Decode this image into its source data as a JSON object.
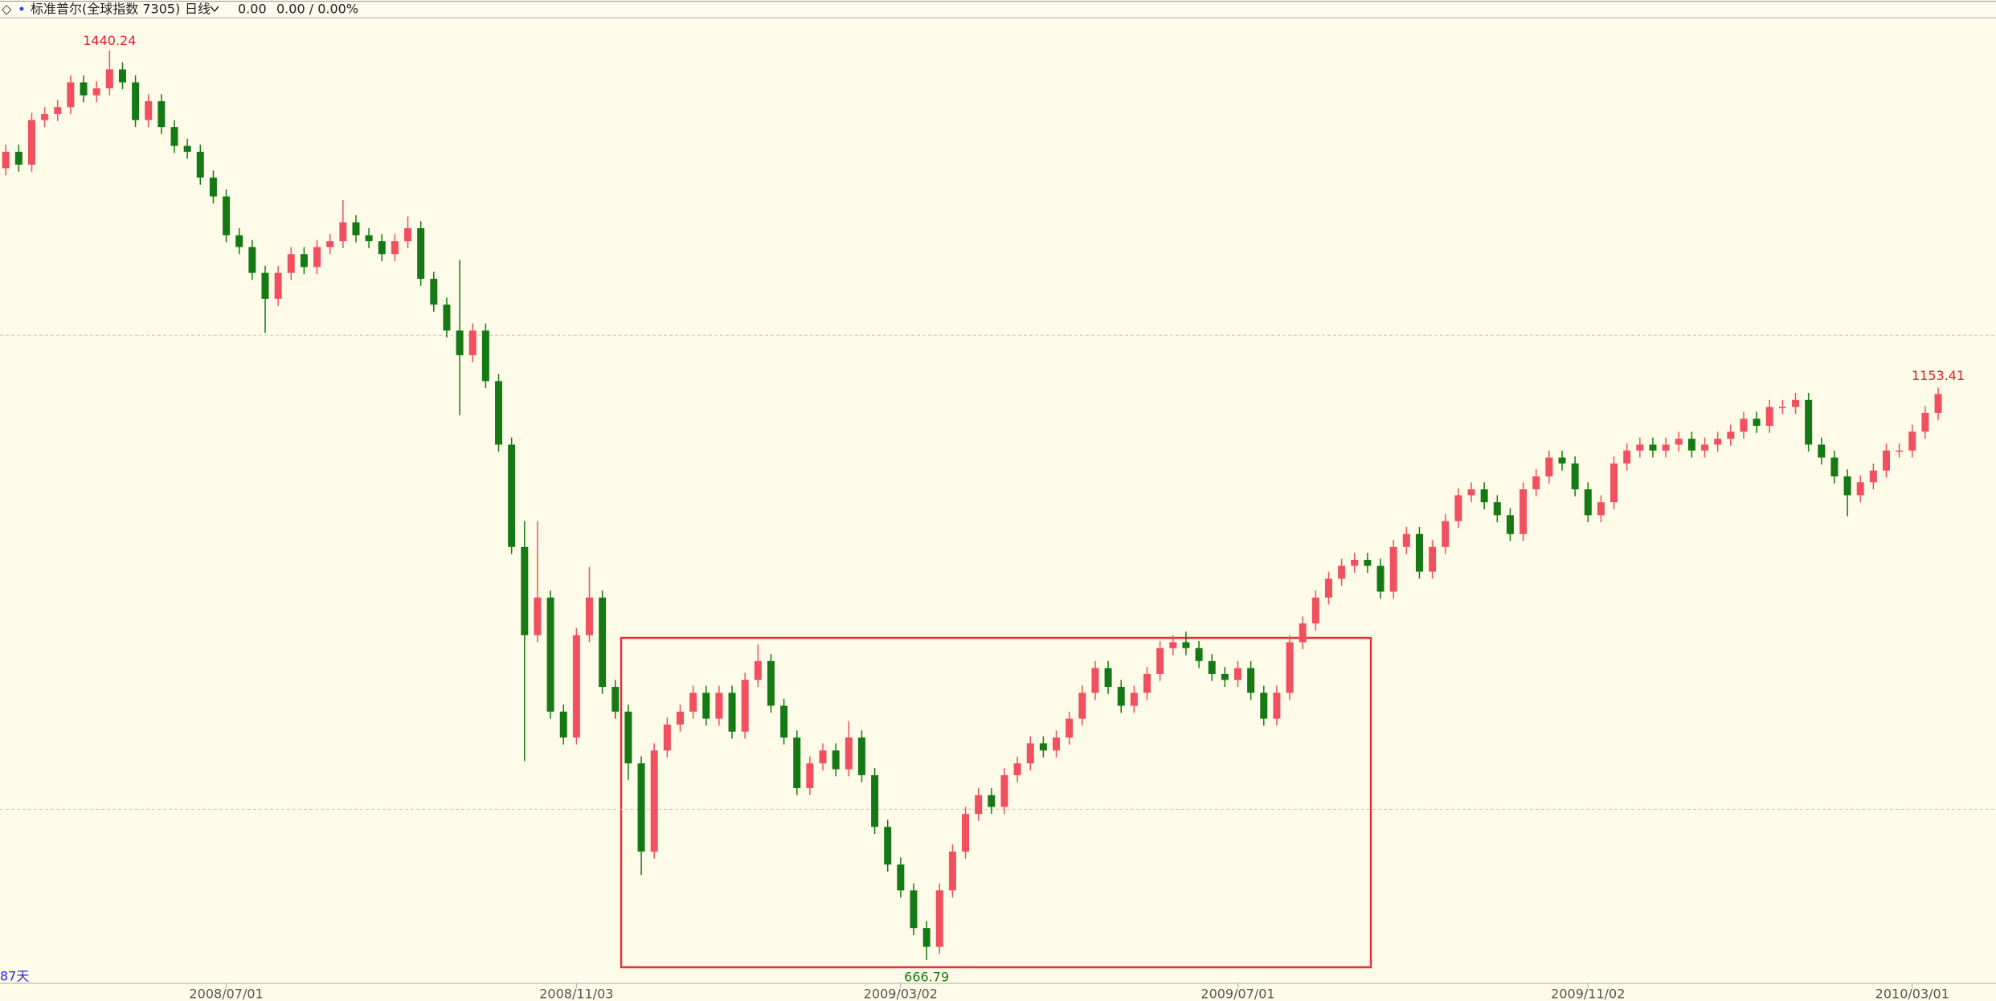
{
  "toolbar": {
    "name": "标准普尔(全球指数 7305)",
    "period": "日线",
    "price": "0.00",
    "change": "0.00 / 0.00%"
  },
  "chart_data": {
    "type": "candlestick",
    "categories": [
      null,
      null,
      null,
      null,
      null,
      null,
      null,
      null,
      null,
      null,
      null,
      null,
      null,
      null,
      null,
      null,
      null,
      "2008/07/01",
      null,
      null,
      null,
      null,
      null,
      null,
      null,
      null,
      null,
      null,
      null,
      null,
      null,
      null,
      null,
      null,
      null,
      null,
      null,
      null,
      null,
      null,
      null,
      null,
      null,
      null,
      "2008/11/03",
      null,
      null,
      null,
      null,
      null,
      null,
      null,
      null,
      null,
      null,
      null,
      null,
      null,
      null,
      null,
      null,
      null,
      null,
      null,
      null,
      null,
      null,
      null,
      null,
      "2009/03/02",
      null,
      null,
      null,
      null,
      null,
      null,
      null,
      null,
      null,
      null,
      null,
      null,
      null,
      null,
      null,
      null,
      null,
      null,
      null,
      null,
      null,
      null,
      null,
      null,
      null,
      "2009/07/01",
      null,
      null,
      null,
      null,
      null,
      null,
      null,
      null,
      null,
      null,
      null,
      null,
      null,
      null,
      null,
      null,
      null,
      null,
      null,
      null,
      null,
      null,
      null,
      null,
      null,
      null,
      "2009/11/02",
      null,
      null,
      null,
      null,
      null,
      null,
      null,
      null,
      null,
      null,
      null,
      null,
      null,
      null,
      null,
      null,
      null,
      null,
      null,
      null,
      null,
      null,
      null,
      null,
      "2010/03/01",
      null,
      null
    ],
    "open": [
      1340,
      1354,
      1343,
      1381,
      1386,
      1392,
      1413,
      1402,
      1408,
      1424,
      1413,
      1381,
      1397,
      1375,
      1359,
      1354,
      1332,
      1316,
      1283,
      1273,
      1251,
      1229,
      1251,
      1267,
      1256,
      1273,
      1278,
      1294,
      1283,
      1278,
      1267,
      1278,
      1289,
      1246,
      1224,
      1202,
      1181,
      1202,
      1159,
      1105,
      1018,
      943,
      975,
      878,
      856,
      943,
      975,
      899,
      878,
      834,
      759,
      845,
      867,
      878,
      894,
      872,
      894,
      861,
      905,
      921,
      883,
      856,
      813,
      834,
      845,
      829,
      856,
      824,
      780,
      748,
      726,
      694,
      678,
      726,
      759,
      791,
      807,
      797,
      824,
      834,
      851,
      845,
      856,
      872,
      894,
      915,
      899,
      883,
      894,
      910,
      932,
      937,
      932,
      921,
      910,
      905,
      915,
      894,
      872,
      894,
      937,
      953,
      975,
      991,
      1002,
      1007,
      1002,
      980,
      1018,
      1029,
      997,
      1018,
      1040,
      1062,
      1067,
      1056,
      1045,
      1029,
      1067,
      1078,
      1094,
      1089,
      1067,
      1045,
      1056,
      1089,
      1100,
      1105,
      1100,
      1105,
      1110,
      1100,
      1105,
      1110,
      1116,
      1127,
      1121,
      1137,
      1137,
      1143,
      1105,
      1094,
      1078,
      1062,
      1073,
      1083,
      1100,
      1100,
      1116,
      1132
    ],
    "high": [
      1360,
      1360,
      1387,
      1392,
      1398,
      1419,
      1419,
      1414,
      1440.24,
      1430,
      1419,
      1403,
      1403,
      1381,
      1365,
      1360,
      1338,
      1322,
      1289,
      1279,
      1257,
      1257,
      1273,
      1273,
      1279,
      1284,
      1313,
      1300,
      1289,
      1284,
      1284,
      1299,
      1295,
      1252,
      1230,
      1262,
      1208,
      1208,
      1165,
      1111,
      1040,
      1040,
      981,
      884,
      949,
      1001,
      981,
      905,
      884,
      840,
      851,
      873,
      884,
      900,
      900,
      900,
      900,
      911,
      935,
      927,
      889,
      862,
      840,
      851,
      851,
      870,
      862,
      830,
      786,
      754,
      732,
      700,
      732,
      765,
      797,
      813,
      813,
      830,
      840,
      857,
      857,
      862,
      878,
      900,
      921,
      921,
      905,
      900,
      916,
      938,
      943,
      946,
      938,
      927,
      916,
      921,
      921,
      900,
      900,
      943,
      959,
      981,
      997,
      1008,
      1013,
      1013,
      1008,
      1024,
      1035,
      1035,
      1024,
      1046,
      1068,
      1073,
      1073,
      1062,
      1051,
      1073,
      1084,
      1100,
      1100,
      1095,
      1073,
      1062,
      1095,
      1106,
      1111,
      1111,
      1111,
      1116,
      1116,
      1111,
      1116,
      1122,
      1133,
      1133,
      1143,
      1143,
      1149,
      1149,
      1111,
      1100,
      1084,
      1079,
      1089,
      1106,
      1106,
      1122,
      1138,
      1153.41
    ],
    "low": [
      1334,
      1337,
      1337,
      1375,
      1380,
      1386,
      1396,
      1396,
      1402,
      1407,
      1375,
      1375,
      1369,
      1353,
      1348,
      1326,
      1310,
      1277,
      1267,
      1245,
      1200,
      1223,
      1245,
      1250,
      1250,
      1267,
      1272,
      1277,
      1272,
      1261,
      1261,
      1272,
      1240,
      1218,
      1196,
      1130,
      1175,
      1153,
      1099,
      1012,
      836,
      937,
      872,
      850,
      850,
      937,
      893,
      872,
      820,
      739,
      753,
      839,
      861,
      872,
      866,
      866,
      855,
      855,
      899,
      877,
      850,
      807,
      807,
      828,
      823,
      823,
      818,
      774,
      742,
      720,
      688,
      666.79,
      672,
      720,
      753,
      785,
      791,
      791,
      818,
      828,
      839,
      839,
      850,
      866,
      888,
      893,
      877,
      877,
      888,
      904,
      926,
      926,
      915,
      904,
      899,
      899,
      888,
      866,
      866,
      888,
      931,
      947,
      969,
      985,
      996,
      996,
      974,
      974,
      1012,
      991,
      991,
      1012,
      1034,
      1056,
      1050,
      1039,
      1023,
      1023,
      1061,
      1072,
      1083,
      1061,
      1039,
      1039,
      1050,
      1083,
      1094,
      1094,
      1094,
      1099,
      1094,
      1094,
      1099,
      1104,
      1110,
      1115,
      1115,
      1131,
      1131,
      1099,
      1088,
      1072,
      1044,
      1056,
      1067,
      1077,
      1094,
      1094,
      1110,
      1126
    ],
    "close": [
      1354,
      1343,
      1381,
      1386,
      1392,
      1413,
      1402,
      1408,
      1424,
      1413,
      1381,
      1397,
      1375,
      1359,
      1354,
      1332,
      1316,
      1283,
      1273,
      1251,
      1229,
      1251,
      1267,
      1256,
      1273,
      1278,
      1294,
      1283,
      1278,
      1267,
      1278,
      1289,
      1246,
      1224,
      1202,
      1181,
      1202,
      1159,
      1105,
      1018,
      943,
      975,
      878,
      856,
      943,
      975,
      899,
      878,
      834,
      759,
      845,
      867,
      878,
      894,
      872,
      894,
      861,
      905,
      921,
      883,
      856,
      813,
      834,
      845,
      829,
      856,
      824,
      780,
      748,
      726,
      694,
      678,
      726,
      759,
      791,
      807,
      797,
      824,
      834,
      851,
      845,
      856,
      872,
      894,
      915,
      899,
      883,
      894,
      910,
      932,
      937,
      932,
      921,
      910,
      905,
      915,
      894,
      872,
      894,
      937,
      953,
      975,
      991,
      1002,
      1007,
      1002,
      980,
      1018,
      1029,
      997,
      1018,
      1040,
      1062,
      1067,
      1056,
      1045,
      1029,
      1067,
      1078,
      1094,
      1089,
      1067,
      1045,
      1056,
      1089,
      1100,
      1105,
      1100,
      1105,
      1110,
      1100,
      1105,
      1110,
      1116,
      1127,
      1121,
      1137,
      1137,
      1143,
      1105,
      1094,
      1078,
      1062,
      1073,
      1083,
      1100,
      1100,
      1116,
      1132,
      1148
    ],
    "up_color": "#f0505f",
    "down_color": "#157a15",
    "ylim": [
      647,
      1468
    ],
    "hlines": [
      1198,
      795
    ],
    "max_label": "1440.24",
    "min_label": "666.79",
    "last_label": "1153.41",
    "days_label": "87天"
  }
}
